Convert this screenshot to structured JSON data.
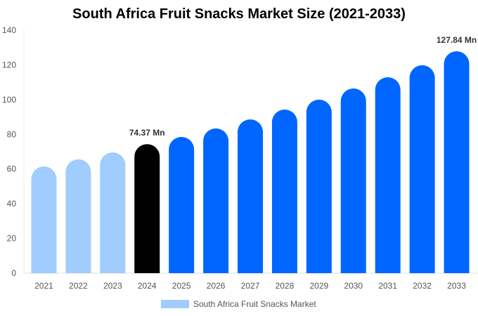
{
  "chart_data": {
    "type": "bar",
    "title": "South Africa Fruit Snacks Market Size (2021-2033)",
    "categories": [
      "2021",
      "2022",
      "2023",
      "2024",
      "2025",
      "2026",
      "2027",
      "2028",
      "2029",
      "2030",
      "2031",
      "2032",
      "2033"
    ],
    "series": [
      {
        "name": "South Africa Fruit Snacks Market",
        "values": [
          61.5,
          65.6,
          69.6,
          74.37,
          78.5,
          83.4,
          88.6,
          94.3,
          100.0,
          106.4,
          112.9,
          119.8,
          127.84
        ]
      }
    ],
    "data_labels": {
      "3": "74.37 Mn",
      "12": "127.84 Mn"
    },
    "ylim": [
      0,
      140
    ],
    "yticks": [
      0,
      20,
      40,
      60,
      80,
      100,
      120,
      140
    ],
    "grid": false,
    "legend": "bottom",
    "colors": {
      "historical": "#a0cdfd",
      "current": "#000000",
      "forecast": "#0066ff"
    }
  }
}
